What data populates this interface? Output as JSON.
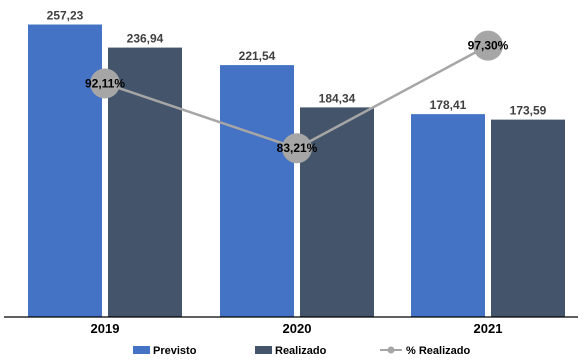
{
  "chart_data": {
    "type": "bar",
    "categories": [
      "2019",
      "2020",
      "2021"
    ],
    "series": [
      {
        "name": "Previsto",
        "kind": "bar",
        "color": "#4472C4",
        "values": [
          257.23,
          221.54,
          178.41
        ],
        "labels": [
          "257,23",
          "221,54",
          "178,41"
        ]
      },
      {
        "name": "Realizado",
        "kind": "bar",
        "color": "#44546A",
        "values": [
          236.94,
          184.34,
          173.59
        ],
        "labels": [
          "236,94",
          "184,34",
          "173,59"
        ]
      },
      {
        "name": "% Realizado",
        "kind": "line",
        "axis": "secondary",
        "color": "#A6A6A6",
        "values": [
          92.11,
          83.21,
          97.3
        ],
        "labels": [
          "92,11%",
          "83,21%",
          "97,30%"
        ]
      }
    ],
    "ylim": [
      0,
      270
    ],
    "y2lim": [
      75,
      100
    ],
    "grid": false,
    "legend": "bottom"
  }
}
